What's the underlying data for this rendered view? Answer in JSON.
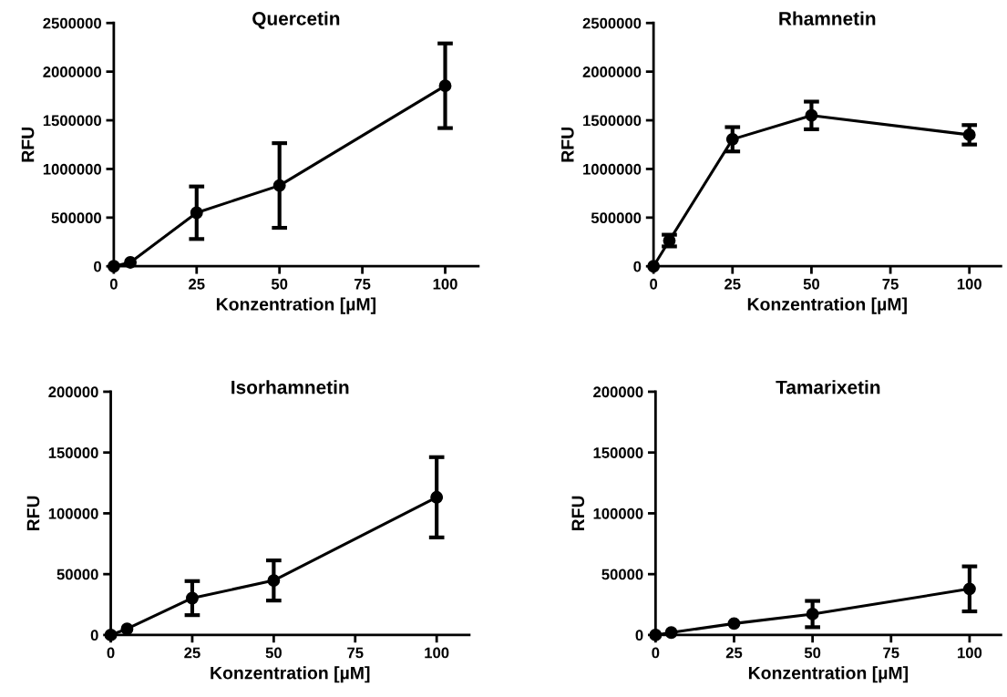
{
  "chart_data": [
    {
      "type": "line",
      "title": "Quercetin",
      "xlabel": "Konzentration [µM]",
      "ylabel": "RFU",
      "x": [
        0,
        5,
        25,
        50,
        100
      ],
      "series": [
        {
          "color": "#000000",
          "values": [
            0,
            40000,
            550000,
            830000,
            1855000
          ],
          "errors": [
            null,
            null,
            270000,
            435000,
            435000
          ]
        }
      ],
      "xlim": [
        0,
        110
      ],
      "xticks": [
        0,
        25,
        50,
        75,
        100
      ],
      "ylim": [
        0,
        2500000
      ],
      "yticks": [
        0,
        500000,
        1000000,
        1500000,
        2000000,
        2500000
      ],
      "marker": "circle",
      "line_style": "solid",
      "grid": false
    },
    {
      "type": "line",
      "title": "Rhamnetin",
      "xlabel": "Konzentration [µM]",
      "ylabel": "RFU",
      "x": [
        0,
        5,
        25,
        50,
        100
      ],
      "series": [
        {
          "color": "#000000",
          "values": [
            0,
            264000,
            1305000,
            1550000,
            1351000
          ],
          "errors": [
            null,
            60000,
            125000,
            142000,
            100000
          ]
        }
      ],
      "xlim": [
        0,
        110
      ],
      "xticks": [
        0,
        25,
        50,
        75,
        100
      ],
      "ylim": [
        0,
        2500000
      ],
      "yticks": [
        0,
        500000,
        1000000,
        1500000,
        2000000,
        2500000
      ],
      "marker": "circle",
      "line_style": "solid",
      "grid": false
    },
    {
      "type": "line",
      "title": "Isorhamnetin",
      "xlabel": "Konzentration [µM]",
      "ylabel": "RFU",
      "x": [
        0,
        5,
        25,
        50,
        100
      ],
      "series": [
        {
          "color": "#000000",
          "values": [
            0,
            5000,
            30300,
            44800,
            113200
          ],
          "errors": [
            null,
            null,
            14000,
            16500,
            33000
          ]
        }
      ],
      "xlim": [
        0,
        110
      ],
      "xticks": [
        0,
        25,
        50,
        75,
        100
      ],
      "ylim": [
        0,
        200000
      ],
      "yticks": [
        0,
        50000,
        100000,
        150000,
        200000
      ],
      "marker": "circle",
      "line_style": "solid",
      "grid": false
    },
    {
      "type": "line",
      "title": "Tamarixetin",
      "xlabel": "Konzentration [µM]",
      "ylabel": "RFU",
      "x": [
        0,
        5,
        25,
        50,
        100
      ],
      "series": [
        {
          "color": "#000000",
          "values": [
            0,
            2000,
            9400,
            17200,
            37900
          ],
          "errors": [
            null,
            null,
            null,
            10800,
            18500
          ]
        }
      ],
      "xlim": [
        0,
        110
      ],
      "xticks": [
        0,
        25,
        50,
        75,
        100
      ],
      "ylim": [
        0,
        200000
      ],
      "yticks": [
        0,
        50000,
        100000,
        150000,
        200000
      ],
      "marker": "circle",
      "line_style": "solid",
      "grid": false
    }
  ]
}
